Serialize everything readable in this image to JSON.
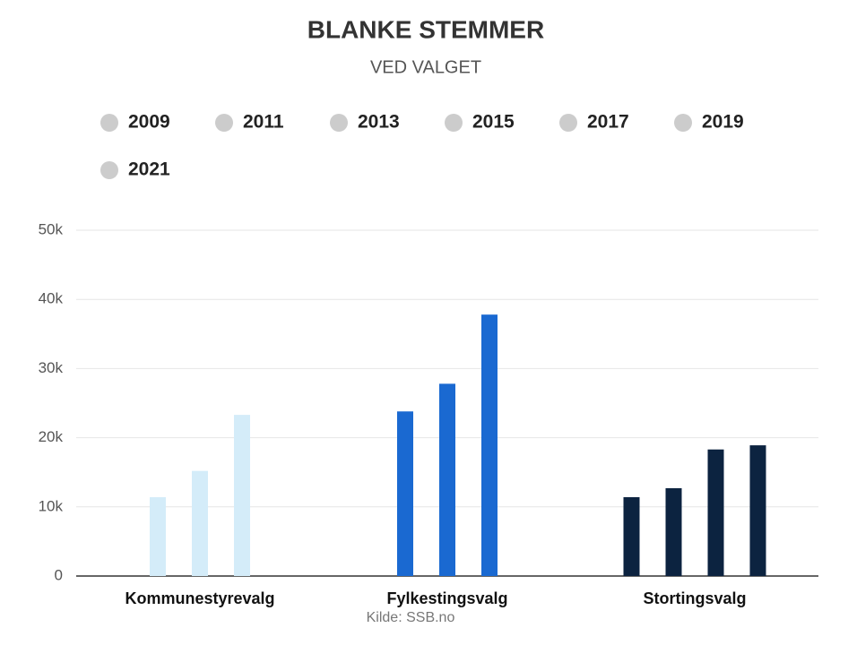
{
  "chart_data": {
    "type": "bar",
    "title": "BLANKE STEMMER",
    "subtitle": "VED VALGET",
    "categories": [
      "Kommunestyrevalg",
      "Fylkestingsvalg",
      "Stortingsvalg"
    ],
    "category_colors": [
      "#d4ecf9",
      "#1a69d1",
      "#0c2340"
    ],
    "series": [
      {
        "name": "2009",
        "color": "#cccccc",
        "values": [
          null,
          null,
          11400
        ]
      },
      {
        "name": "2011",
        "color": "#cccccc",
        "values": [
          11400,
          23800,
          null
        ]
      },
      {
        "name": "2013",
        "color": "#cccccc",
        "values": [
          null,
          null,
          12700
        ]
      },
      {
        "name": "2015",
        "color": "#cccccc",
        "values": [
          15200,
          27800,
          null
        ]
      },
      {
        "name": "2017",
        "color": "#cccccc",
        "values": [
          null,
          null,
          18300
        ]
      },
      {
        "name": "2019",
        "color": "#cccccc",
        "values": [
          23300,
          37800,
          null
        ]
      },
      {
        "name": "2021",
        "color": "#cccccc",
        "values": [
          null,
          null,
          18900
        ]
      }
    ],
    "ylim": [
      0,
      50000
    ],
    "yticks": [
      0,
      {
        "value": 10000,
        "label": "10k"
      },
      {
        "value": 20000,
        "label": "20k"
      },
      {
        "value": 30000,
        "label": "30k"
      },
      {
        "value": 40000,
        "label": "40k"
      },
      {
        "value": 50000,
        "label": "50k"
      }
    ],
    "grid": true,
    "credit": "Kilde: SSB.no"
  }
}
